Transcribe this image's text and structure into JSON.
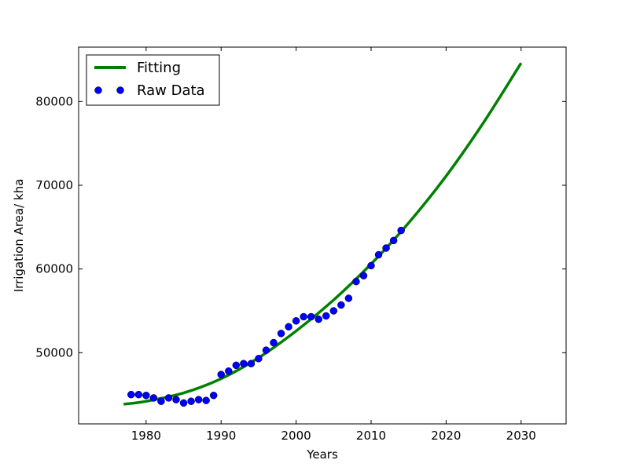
{
  "chart_data": {
    "type": "line",
    "title": "",
    "xlabel": "Years",
    "ylabel": "Irrigation Area/ kha",
    "xlim": [
      1971,
      2036
    ],
    "ylim": [
      41500,
      86500
    ],
    "x_ticks": [
      1980,
      1990,
      2000,
      2010,
      2020,
      2030
    ],
    "y_ticks": [
      50000,
      60000,
      70000,
      80000
    ],
    "grid": false,
    "legend_position": "top-left",
    "series": [
      {
        "name": "Fitting",
        "kind": "line",
        "color": "#008000",
        "x": [
          1977,
          1980,
          1985,
          1990,
          1995,
          2000,
          2005,
          2010,
          2015,
          2020,
          2025,
          2030
        ],
        "y": [
          43850,
          44200,
          45200,
          46900,
          49400,
          52600,
          56300,
          60600,
          65500,
          71100,
          77500,
          84600
        ]
      },
      {
        "name": "Raw Data",
        "kind": "scatter",
        "color": "#0000ff",
        "x": [
          1978,
          1979,
          1980,
          1981,
          1982,
          1983,
          1984,
          1985,
          1986,
          1987,
          1988,
          1989,
          1990,
          1991,
          1992,
          1993,
          1994,
          1995,
          1996,
          1997,
          1998,
          1999,
          2000,
          2001,
          2002,
          2003,
          2004,
          2005,
          2006,
          2007,
          2008,
          2009,
          2010,
          2011,
          2012,
          2013,
          2014
        ],
        "y": [
          45000,
          45000,
          44900,
          44600,
          44200,
          44600,
          44400,
          44000,
          44200,
          44400,
          44300,
          44900,
          47400,
          47800,
          48500,
          48700,
          48700,
          49300,
          50300,
          51200,
          52300,
          53100,
          53800,
          54300,
          54300,
          54000,
          54400,
          55000,
          55700,
          56500,
          58500,
          59200,
          60400,
          61700,
          62500,
          63400,
          64600
        ]
      }
    ]
  }
}
